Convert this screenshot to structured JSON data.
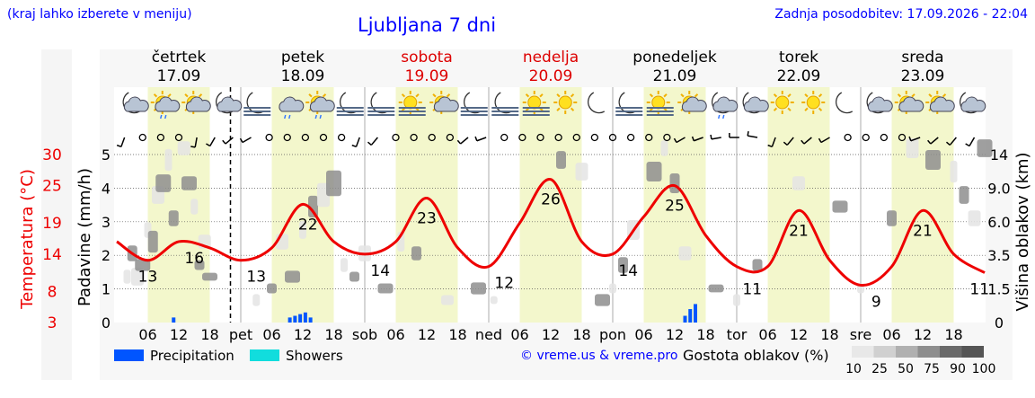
{
  "header": {
    "hint": "(kraj lahko izberete v meniju)",
    "title": "Ljubljana 7 dni",
    "updated": "Zadnja posodobitev: 17.09.2026 - 22:04"
  },
  "days": [
    {
      "name": "četrtek",
      "date": "17.09",
      "weekend": false
    },
    {
      "name": "petek",
      "date": "18.09",
      "weekend": false
    },
    {
      "name": "sobota",
      "date": "19.09",
      "weekend": true
    },
    {
      "name": "nedelja",
      "date": "20.09",
      "weekend": true
    },
    {
      "name": "ponedeljek",
      "date": "21.09",
      "weekend": false
    },
    {
      "name": "torek",
      "date": "22.09",
      "weekend": false
    },
    {
      "name": "sreda",
      "date": "23.09",
      "weekend": false
    }
  ],
  "day_abbr": [
    "pet",
    "sob",
    "ned",
    "pon",
    "tor",
    "sre"
  ],
  "hour_ticks": [
    "06",
    "12",
    "18"
  ],
  "weather_icons": [
    [
      "moon-cloud-icon",
      "sun-cloud-rain-icon",
      "sun-cloud-icon",
      "moon-cloud-icon"
    ],
    [
      "moon-fog-icon",
      "cloud-rain-icon",
      "sun-cloud-rain-icon",
      "moon-fog-icon"
    ],
    [
      "moon-fog-icon",
      "sun-fog-icon",
      "sun-cloud-icon",
      "moon-fog-icon"
    ],
    [
      "moon-fog-icon",
      "sun-fog-icon",
      "sun-icon",
      "moon-icon"
    ],
    [
      "moon-fog-icon",
      "sun-fog-icon",
      "sun-cloud-icon",
      "moon-cloud-rain-icon"
    ],
    [
      "moon-cloud-icon",
      "sun-icon",
      "sun-icon",
      "moon-icon"
    ],
    [
      "moon-cloud-icon",
      "sun-cloud-icon",
      "sun-cloud-icon",
      "moon-cloud-icon"
    ]
  ],
  "left_axis": {
    "temp_label": "Temperatura (°C)",
    "temp_ticks": [
      3,
      8,
      14,
      19,
      25,
      30
    ],
    "precip_label": "Padavine (mm/h)",
    "precip_ticks": [
      0,
      1,
      2,
      3,
      4,
      5
    ]
  },
  "right_axis": {
    "label": "Višina oblakov (km)",
    "ticks": [
      "0",
      "1.5",
      "3.5",
      "6.0",
      "9.0",
      "14"
    ]
  },
  "legend": {
    "precipitation": "Precipitation",
    "showers": "Showers",
    "cloud_title": "Gostota oblakov (%)",
    "cloud_levels": [
      "10",
      "25",
      "50",
      "75",
      "90",
      "100"
    ]
  },
  "credit": "© vreme.us & vreme.pro",
  "colors": {
    "temperature": "#ee0000",
    "precipitation": "#0055ff",
    "showers": "#11dddd",
    "daylight": "#f3f7cc",
    "weekend": "#dd0000",
    "link": "#0000ff"
  },
  "chart_data": {
    "type": "line",
    "x_unit": "hours from 17.09 00:00",
    "temperature": {
      "name": "Temperatura",
      "x": [
        0,
        6,
        12,
        18,
        24,
        30,
        36,
        42,
        48,
        54,
        60,
        66,
        72,
        78,
        84,
        90,
        96,
        102,
        108,
        114,
        120,
        126,
        132,
        138,
        144,
        150,
        156,
        162,
        168
      ],
      "y": [
        16,
        13,
        16,
        15,
        13,
        15,
        22,
        16,
        14,
        16,
        23,
        15,
        12,
        19,
        26,
        16,
        14,
        20,
        25,
        17,
        12,
        12,
        21,
        13,
        9,
        12,
        21,
        14,
        11
      ]
    },
    "temp_labels": [
      {
        "x": 6,
        "value": 13
      },
      {
        "x": 15,
        "value": 16
      },
      {
        "x": 27,
        "value": 13
      },
      {
        "x": 37,
        "value": 22
      },
      {
        "x": 51,
        "value": 14
      },
      {
        "x": 60,
        "value": 23
      },
      {
        "x": 75,
        "value": 12
      },
      {
        "x": 84,
        "value": 26
      },
      {
        "x": 99,
        "value": 14
      },
      {
        "x": 108,
        "value": 25
      },
      {
        "x": 123,
        "value": 11
      },
      {
        "x": 132,
        "value": 21
      },
      {
        "x": 147,
        "value": 9
      },
      {
        "x": 156,
        "value": 21
      },
      {
        "x": 167,
        "value": 11
      }
    ],
    "precipitation": {
      "name": "Precipitation",
      "x": [
        11,
        33.5,
        34.5,
        35.5,
        36.5,
        37.5,
        110,
        111,
        112
      ],
      "y": [
        0.15,
        0.15,
        0.2,
        0.25,
        0.3,
        0.15,
        0.2,
        0.4,
        0.55
      ]
    },
    "wind_dirs": [
      200,
      0,
      0,
      0,
      190,
      210,
      230,
      240,
      0,
      0,
      0,
      0,
      0,
      200,
      220,
      0,
      0,
      0,
      0,
      230,
      250,
      0,
      0,
      0,
      0,
      0,
      0,
      0,
      0,
      0,
      0,
      240,
      250,
      260,
      270,
      280,
      200,
      220,
      230,
      240,
      0,
      0,
      0,
      0,
      250,
      230,
      220,
      210
    ],
    "xlim": [
      0,
      168
    ],
    "ylim_precip": [
      0,
      5
    ],
    "ylim_temp": [
      3,
      30
    ]
  }
}
